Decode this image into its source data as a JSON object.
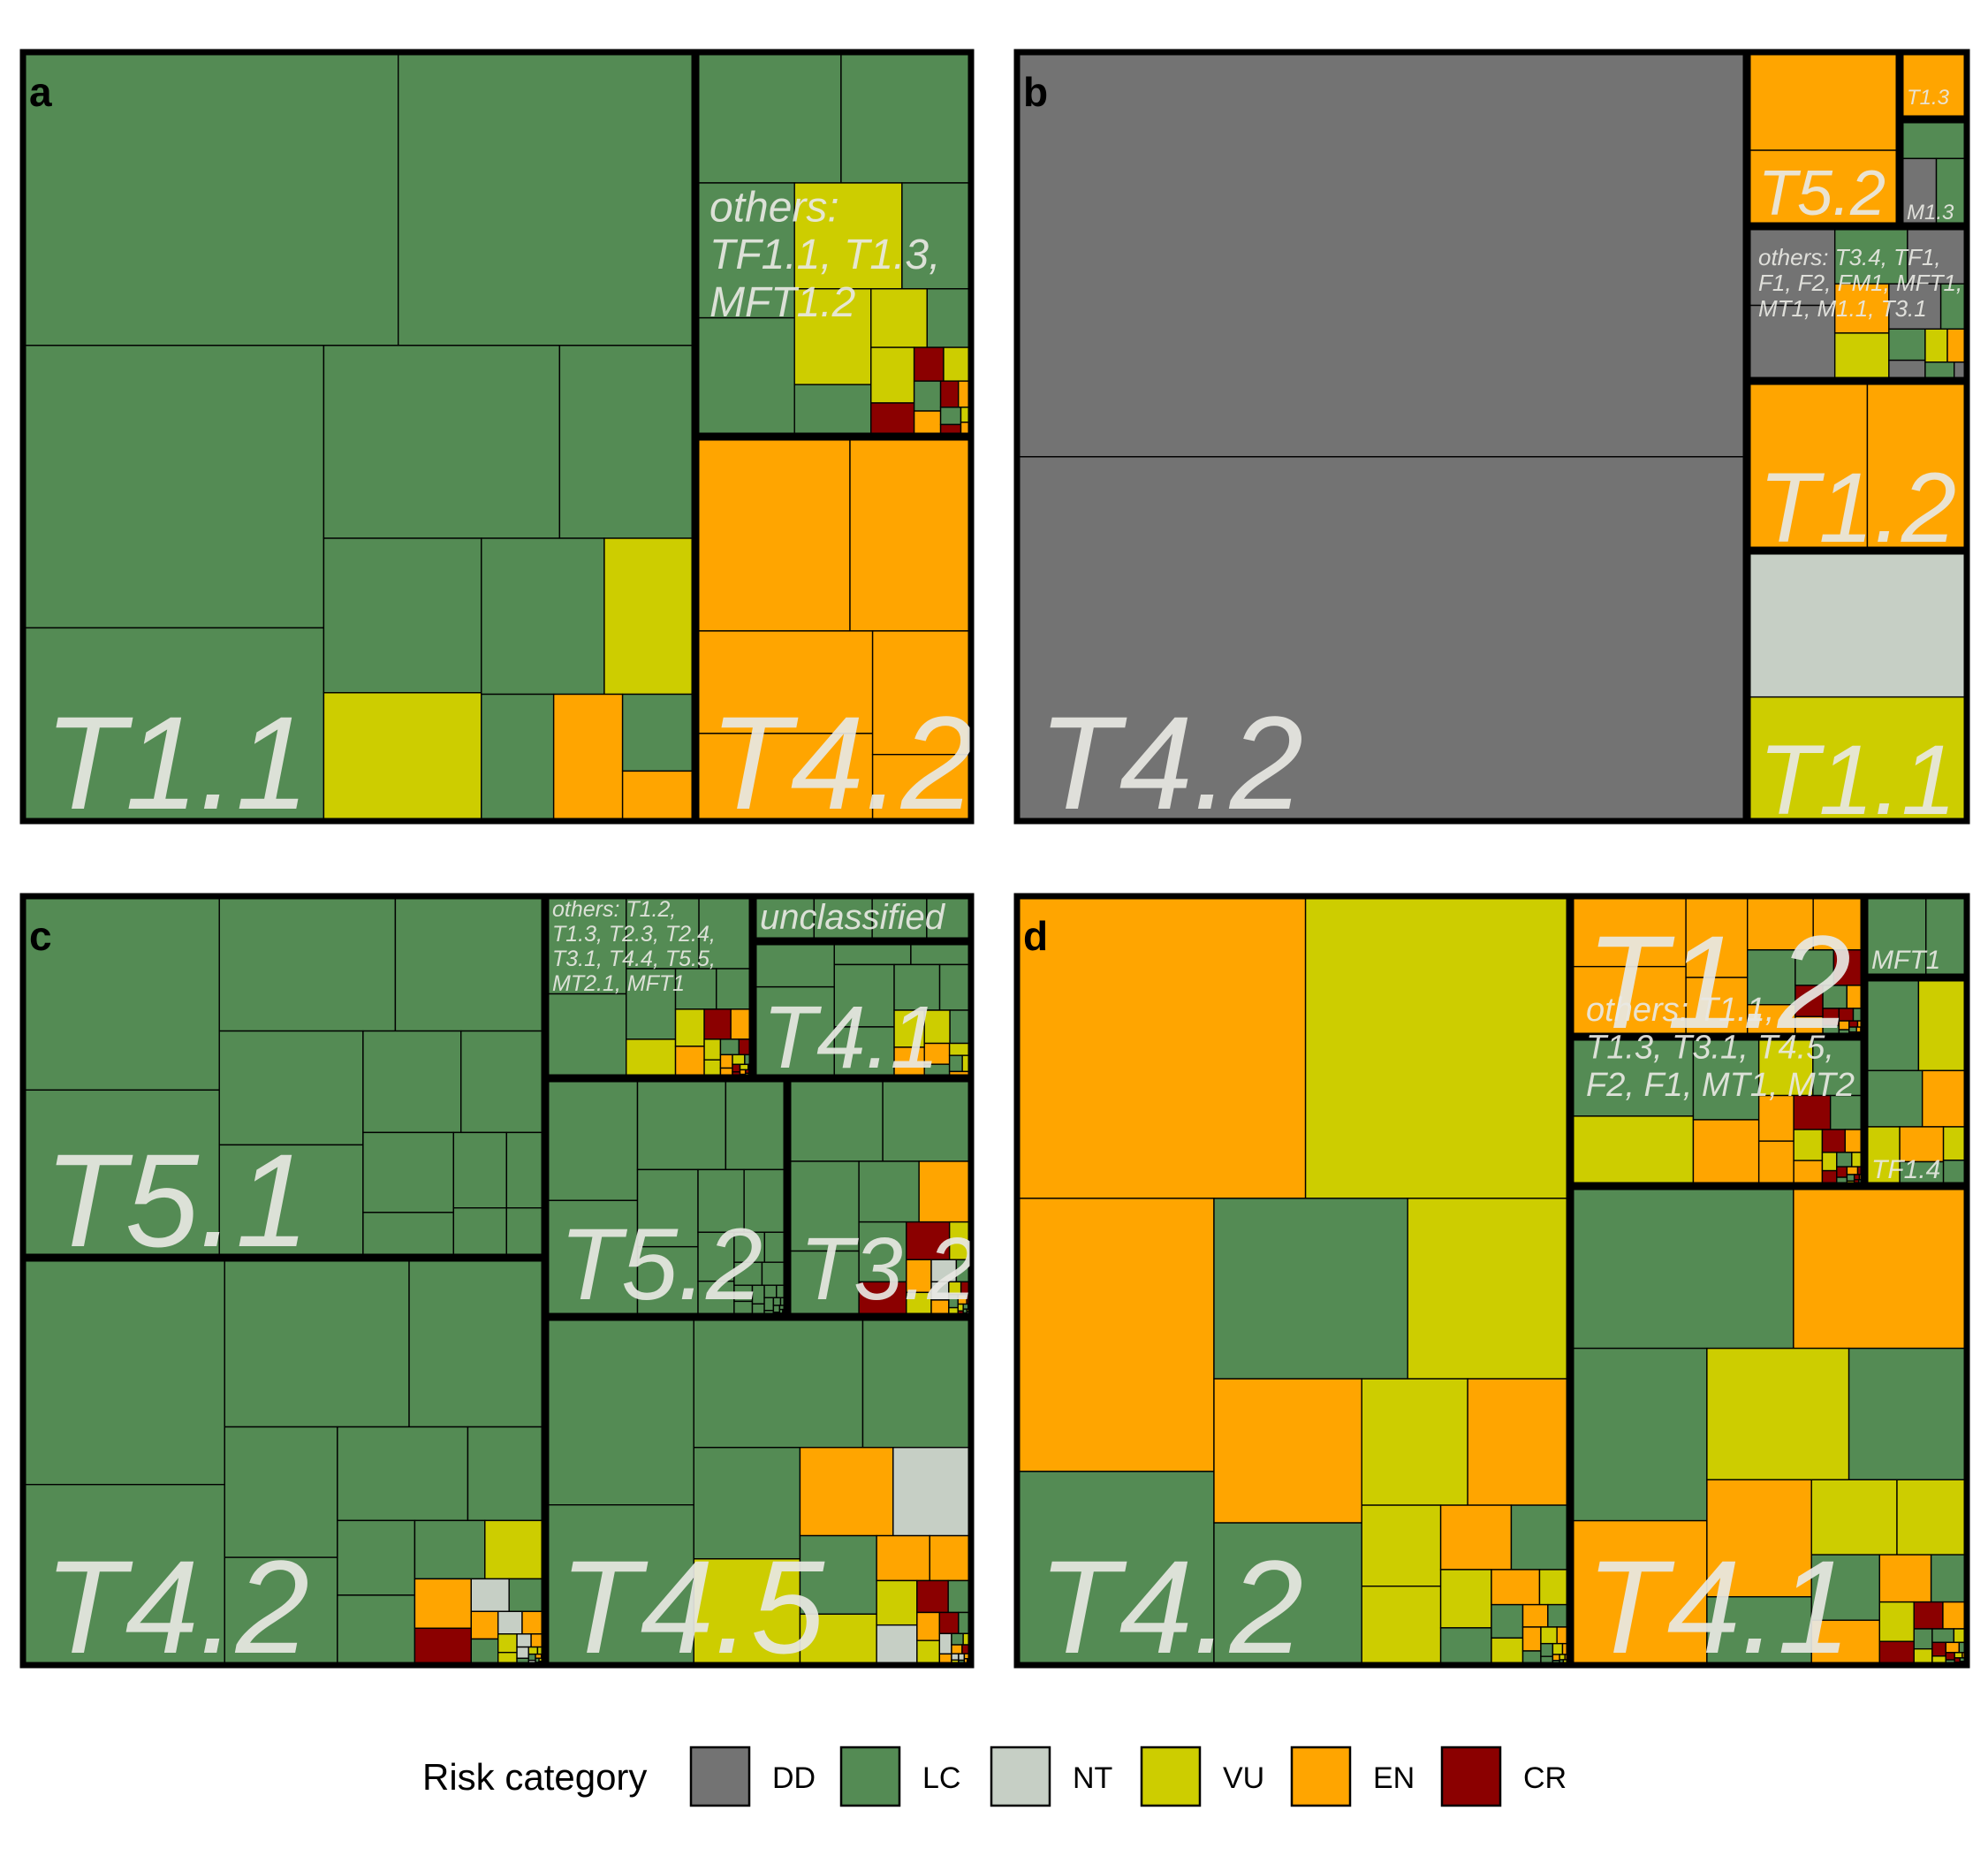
{
  "colors": {
    "DD": "#737373",
    "LC": "#548b54",
    "NT": "#c6cfc5",
    "VU": "#cdcd00",
    "EN": "#ffa500",
    "CR": "#8b0000"
  },
  "legend": {
    "title": "Risk category",
    "items": [
      "DD",
      "LC",
      "NT",
      "VU",
      "EN",
      "CR"
    ]
  },
  "chart_data": [
    {
      "type": "treemap",
      "panel": "a",
      "groups": [
        {
          "label": "T1.1",
          "share": 0.7,
          "dominant": "LC",
          "composition": {
            "LC": 0.91,
            "VU": 0.07,
            "EN": 0.02
          }
        },
        {
          "label": "others:\nTF1.1, T1.3,\nMFT1.2",
          "share": 0.15,
          "dominant": "LC",
          "composition": {
            "LC": 0.72,
            "VU": 0.24,
            "EN": 0.01,
            "CR": 0.03
          }
        },
        {
          "label": "T4.2",
          "share": 0.15,
          "dominant": "EN",
          "composition": {
            "EN": 1.0
          }
        }
      ]
    },
    {
      "type": "treemap",
      "panel": "b",
      "groups": [
        {
          "label": "T4.2",
          "share": 0.78,
          "dominant": "DD",
          "composition": {
            "DD": 1.0
          }
        },
        {
          "label": "T1.1",
          "share": 0.07,
          "dominant": "NT",
          "composition": {
            "NT": 0.6,
            "VU": 0.4
          }
        },
        {
          "label": "T1.2",
          "share": 0.05,
          "dominant": "EN",
          "composition": {
            "EN": 1.0
          }
        },
        {
          "label": "others: T3.4, TF1,\nF1, F2, FM1, MFT1,\nMT1, M1.1, T3.1",
          "share": 0.05,
          "dominant": "DD",
          "composition": {
            "DD": 0.6,
            "LC": 0.2,
            "VU": 0.1,
            "EN": 0.1
          }
        },
        {
          "label": "T5.2",
          "share": 0.04,
          "dominant": "EN",
          "composition": {
            "EN": 1.0
          }
        },
        {
          "label": "T1.3",
          "share": 0.005,
          "dominant": "EN",
          "composition": {
            "EN": 1.0
          }
        },
        {
          "label": "M1.3",
          "share": 0.005,
          "dominant": "LC",
          "composition": {
            "LC": 0.6,
            "DD": 0.4
          }
        }
      ]
    },
    {
      "type": "treemap",
      "panel": "c",
      "groups": [
        {
          "label": "T5.1",
          "share": 0.26,
          "dominant": "LC",
          "composition": {
            "LC": 1.0
          }
        },
        {
          "label": "T4.2",
          "share": 0.29,
          "dominant": "LC",
          "composition": {
            "LC": 0.94,
            "VU": 0.02,
            "EN": 0.02,
            "NT": 0.01,
            "CR": 0.01
          }
        },
        {
          "label": "T4.5",
          "share": 0.15,
          "dominant": "LC",
          "composition": {
            "LC": 0.72,
            "VU": 0.12,
            "EN": 0.09,
            "NT": 0.06,
            "CR": 0.01
          }
        },
        {
          "label": "T5.2",
          "share": 0.09,
          "dominant": "LC",
          "composition": {
            "LC": 1.0
          }
        },
        {
          "label": "T3.2",
          "share": 0.08,
          "dominant": "LC",
          "composition": {
            "LC": 0.76,
            "EN": 0.1,
            "CR": 0.08,
            "VU": 0.04,
            "NT": 0.02
          }
        },
        {
          "label": "T4.1",
          "share": 0.05,
          "dominant": "LC",
          "composition": {
            "LC": 0.9,
            "VU": 0.06,
            "EN": 0.04
          }
        },
        {
          "label": "others: T1.2,\nT1.3, T2.3, T2.4,\nT3.1, T4.4, T5.5,\nMT2.1, MFT1",
          "share": 0.06,
          "dominant": "LC",
          "composition": {
            "LC": 0.82,
            "VU": 0.1,
            "EN": 0.05,
            "CR": 0.03
          }
        },
        {
          "label": "unclassified",
          "share": 0.02,
          "dominant": "LC",
          "composition": {
            "LC": 0.9,
            "NT": 0.05,
            "VU": 0.05
          }
        }
      ]
    },
    {
      "type": "treemap",
      "panel": "d",
      "groups": [
        {
          "label": "T4.2",
          "share": 0.58,
          "dominant": "EN",
          "composition": {
            "EN": 0.43,
            "VU": 0.33,
            "LC": 0.24
          }
        },
        {
          "label": "T4.1",
          "share": 0.2,
          "dominant": "LC",
          "composition": {
            "LC": 0.47,
            "EN": 0.35,
            "VU": 0.17,
            "CR": 0.01
          }
        },
        {
          "label": "T1.2",
          "share": 0.09,
          "dominant": "EN",
          "composition": {
            "EN": 0.82,
            "LC": 0.12,
            "CR": 0.06
          }
        },
        {
          "label": "others: T1.1,\nT1.3, T3.1, T4.5,\nF2, F1, MT1, MT2",
          "share": 0.08,
          "dominant": "LC",
          "composition": {
            "LC": 0.45,
            "VU": 0.3,
            "EN": 0.2,
            "CR": 0.05
          }
        },
        {
          "label": "TF1.4",
          "share": 0.04,
          "dominant": "LC",
          "composition": {
            "LC": 0.45,
            "VU": 0.35,
            "EN": 0.2
          }
        },
        {
          "label": "MFT1",
          "share": 0.01,
          "dominant": "LC",
          "composition": {
            "LC": 1.0
          }
        }
      ]
    }
  ]
}
